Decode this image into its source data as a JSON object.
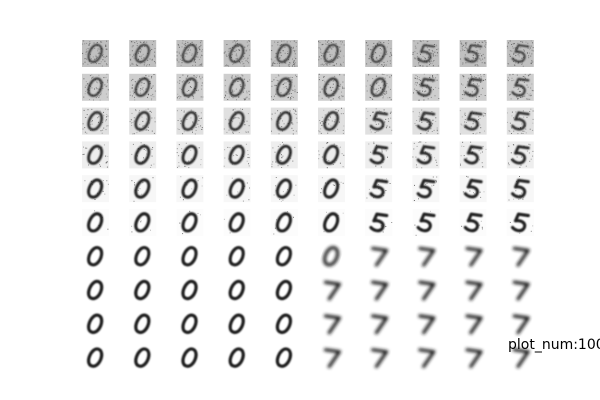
{
  "figure": {
    "grid_rows": 10,
    "grid_cols": 10,
    "stroke_color": "#1a1a1a",
    "noise_color": "#5a5a5a",
    "cells": [
      [
        "0",
        "0",
        "0",
        "0",
        "0",
        "0",
        "0",
        "5",
        "5",
        "5"
      ],
      [
        "0",
        "0",
        "0",
        "0",
        "0",
        "0",
        "0",
        "5",
        "5",
        "5"
      ],
      [
        "0",
        "0",
        "0",
        "0",
        "0",
        "0",
        "5",
        "5",
        "5",
        "5"
      ],
      [
        "0",
        "0",
        "0",
        "0",
        "0",
        "0",
        "5",
        "5",
        "5",
        "5"
      ],
      [
        "0",
        "0",
        "0",
        "0",
        "0",
        "0",
        "5",
        "5",
        "5",
        "5"
      ],
      [
        "0",
        "0",
        "0",
        "0",
        "0",
        "0",
        "5",
        "5",
        "5",
        "5"
      ],
      [
        "0",
        "0",
        "0",
        "0",
        "0",
        "0",
        "7",
        "7",
        "7",
        "7"
      ],
      [
        "0",
        "0",
        "0",
        "0",
        "0",
        "7",
        "7",
        "7",
        "7",
        "7"
      ],
      [
        "0",
        "0",
        "0",
        "0",
        "0",
        "7",
        "7",
        "7",
        "7",
        "7"
      ],
      [
        "0",
        "0",
        "0",
        "0",
        "0",
        "7",
        "7",
        "7",
        "7",
        "7"
      ]
    ],
    "noise_by_row": [
      0.9,
      0.7,
      0.45,
      0.25,
      0.12,
      0.05,
      0.02,
      0.0,
      0.0,
      0.0
    ]
  },
  "caption": "plot_num:100"
}
